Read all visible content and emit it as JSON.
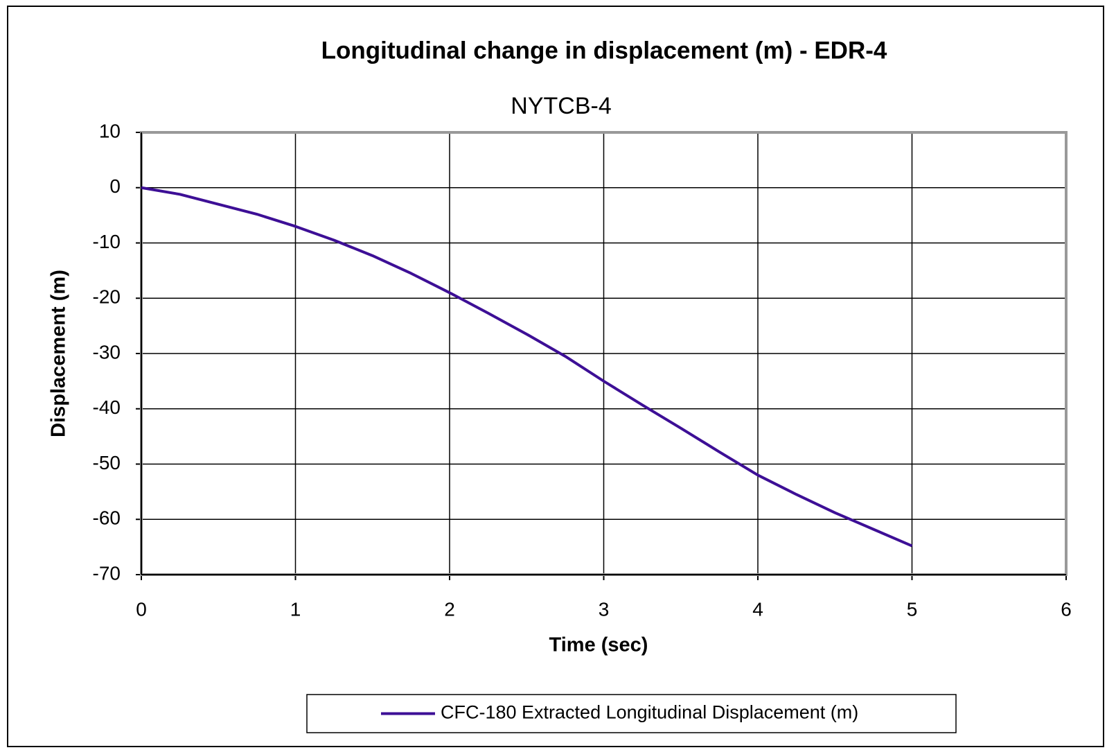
{
  "chart_data": {
    "type": "line",
    "title": "Longitudinal change in displacement (m) - EDR-4",
    "subtitle": "NYTCB-4",
    "xlabel": "Time (sec)",
    "ylabel": "Displacement (m)",
    "x": [
      0,
      0.25,
      0.5,
      0.75,
      1,
      1.25,
      1.5,
      1.75,
      2,
      2.25,
      2.5,
      2.75,
      3,
      3.25,
      3.5,
      3.75,
      4,
      4.25,
      4.5,
      4.75,
      5
    ],
    "series": [
      {
        "name": "CFC-180 Extracted Longitudinal Displacement (m)",
        "color": "#3d0f96",
        "values": [
          0,
          -1.2,
          -3,
          -4.8,
          -7,
          -9.5,
          -12.3,
          -15.5,
          -19,
          -22.7,
          -26.5,
          -30.5,
          -35,
          -39.3,
          -43.5,
          -47.8,
          -52,
          -55.5,
          -58.8,
          -61.8,
          -64.8
        ]
      }
    ],
    "xlim": [
      0,
      6
    ],
    "xticks": [
      0,
      1,
      2,
      3,
      4,
      5,
      6
    ],
    "ylim": [
      -70,
      10
    ],
    "yticks": [
      -70,
      -60,
      -50,
      -40,
      -30,
      -20,
      -10,
      0,
      10
    ],
    "grid": true,
    "legend": "bottom"
  }
}
